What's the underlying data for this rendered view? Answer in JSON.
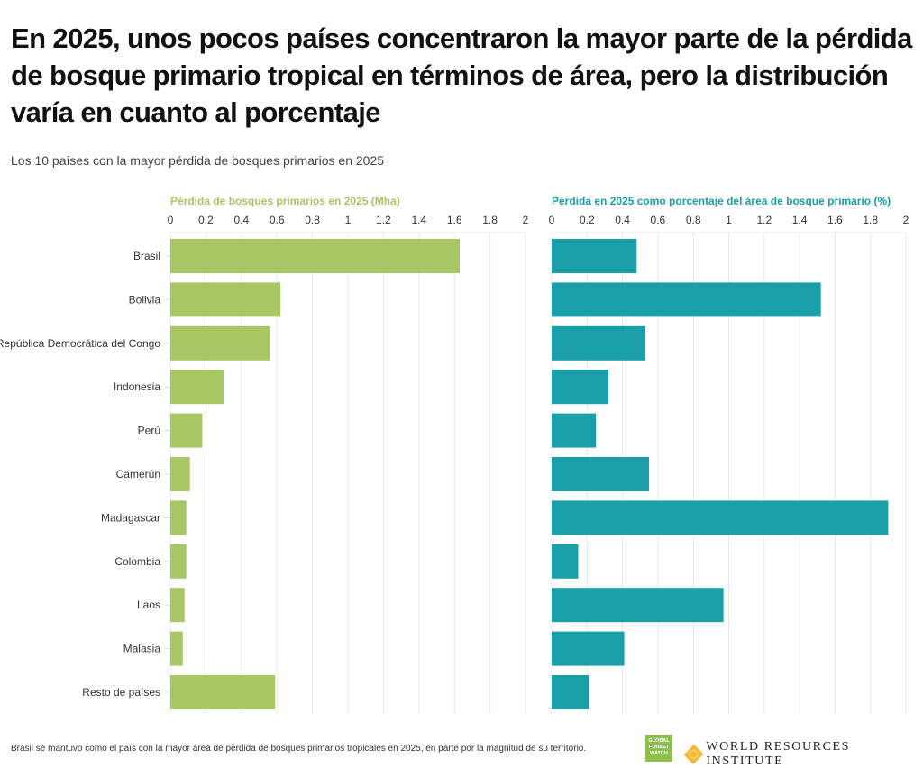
{
  "header": {
    "title": "En 2025, unos pocos países concentraron la mayor parte de la pérdida de bosque primario tropical en términos de área, pero la distribución varía en cuanto al porcentaje",
    "subtitle": "Los 10 países con la mayor pérdida de bosques primarios en 2025"
  },
  "footer": {
    "note": "Brasil se mantuvo como el país con la mayor área de pérdida de bosques primarios tropicales en 2025, en parte por la magnitud de su territorio.",
    "logo_gfw": "GLOBAL FOREST WATCH",
    "logo_wri": "WORLD RESOURCES INSTITUTE"
  },
  "chart_data": [
    {
      "type": "bar",
      "orientation": "horizontal",
      "title": "Pérdida de bosques primarios en 2025 (Mha)",
      "color": "#a8c764",
      "categories": [
        "Brasil",
        "Bolivia",
        "República Democrática del Congo",
        "Indonesia",
        "Perú",
        "Camerún",
        "Madagascar",
        "Colombia",
        "Laos",
        "Malasia",
        "Resto de países"
      ],
      "values": [
        1.63,
        0.62,
        0.56,
        0.3,
        0.18,
        0.11,
        0.09,
        0.09,
        0.08,
        0.07,
        0.59
      ],
      "xlim": [
        0,
        2
      ],
      "ticks": [
        "0",
        "0.2",
        "0.4",
        "0.6",
        "0.8",
        "1",
        "1.2",
        "1.4",
        "1.6",
        "1.8",
        "2"
      ],
      "grid": true
    },
    {
      "type": "bar",
      "orientation": "horizontal",
      "title": "Pérdida en 2025 como porcentaje del área de bosque primario (%)",
      "color": "#1a9fa8",
      "categories": [
        "Brasil",
        "Bolivia",
        "República Democrática del Congo",
        "Indonesia",
        "Perú",
        "Camerún",
        "Madagascar",
        "Colombia",
        "Laos",
        "Malasia",
        "Resto de países"
      ],
      "values": [
        0.48,
        1.52,
        0.53,
        0.32,
        0.25,
        0.55,
        1.9,
        0.15,
        0.97,
        0.41,
        0.21
      ],
      "xlim": [
        0,
        2
      ],
      "ticks": [
        "0",
        "0.2",
        "0.4",
        "0.6",
        "0.8",
        "1",
        "1.2",
        "1.4",
        "1.6",
        "1.8",
        "2"
      ],
      "grid": true
    }
  ]
}
